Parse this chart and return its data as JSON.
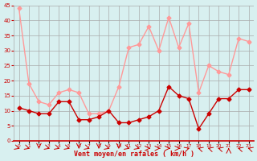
{
  "x": [
    0,
    1,
    2,
    3,
    4,
    5,
    6,
    7,
    8,
    9,
    10,
    11,
    12,
    13,
    14,
    15,
    16,
    17,
    18,
    19,
    20,
    21,
    22,
    23
  ],
  "wind_mean": [
    11,
    10,
    9,
    9,
    13,
    13,
    7,
    7,
    8,
    10,
    6,
    6,
    7,
    8,
    10,
    18,
    15,
    14,
    4,
    9,
    14,
    14,
    17,
    17
  ],
  "wind_gust": [
    44,
    19,
    13,
    12,
    16,
    17,
    16,
    9,
    9,
    10,
    18,
    31,
    32,
    38,
    30,
    41,
    31,
    39,
    16,
    25,
    23,
    22,
    34,
    33
  ],
  "wind_mean_color": "#cc0000",
  "wind_gust_color": "#ff9999",
  "bg_color": "#d8f0f0",
  "grid_color": "#aaaaaa",
  "xlabel": "Vent moyen/en rafales ( km/h )",
  "xlabel_color": "#cc0000",
  "axis_label_color": "#cc0000",
  "ylim": [
    0,
    45
  ],
  "yticks": [
    0,
    5,
    10,
    15,
    20,
    25,
    30,
    35,
    40,
    45
  ],
  "marker_style": "D",
  "marker_size": 2.5,
  "line_width": 1.0
}
